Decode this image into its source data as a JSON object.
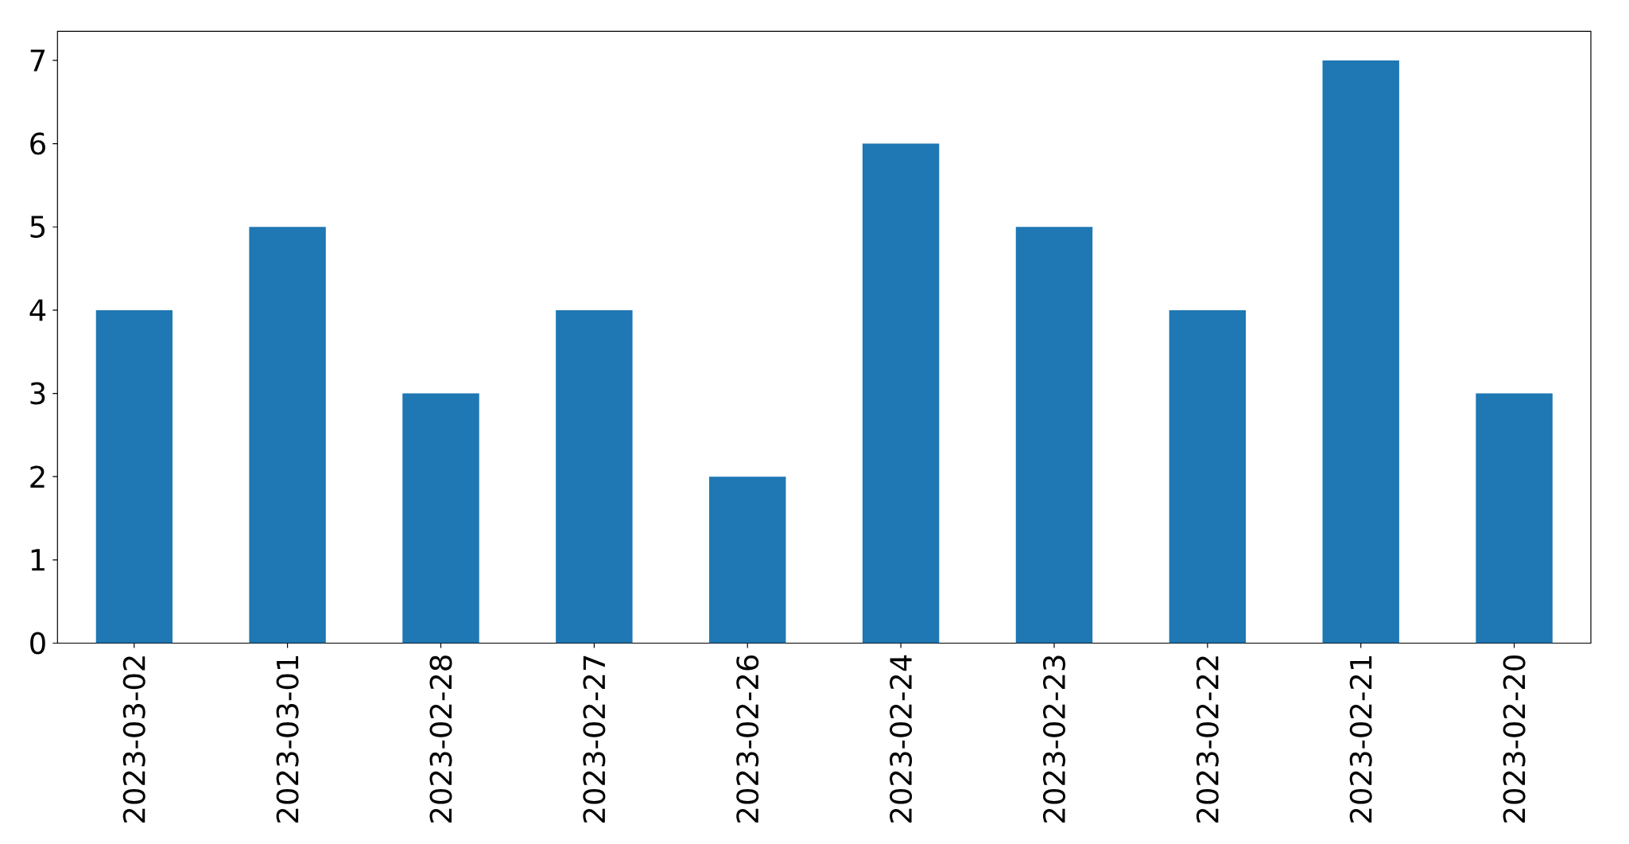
{
  "chart_data": {
    "type": "bar",
    "categories": [
      "2023-03-02",
      "2023-03-01",
      "2023-02-28",
      "2023-02-27",
      "2023-02-26",
      "2023-02-24",
      "2023-02-23",
      "2023-02-22",
      "2023-02-21",
      "2023-02-20"
    ],
    "values": [
      4,
      5,
      3,
      4,
      2,
      6,
      5,
      4,
      7,
      3
    ],
    "color": "#1f77b4",
    "ylim": [
      0,
      7.35
    ],
    "yticks": [
      0,
      1,
      2,
      3,
      4,
      5,
      6,
      7
    ]
  }
}
